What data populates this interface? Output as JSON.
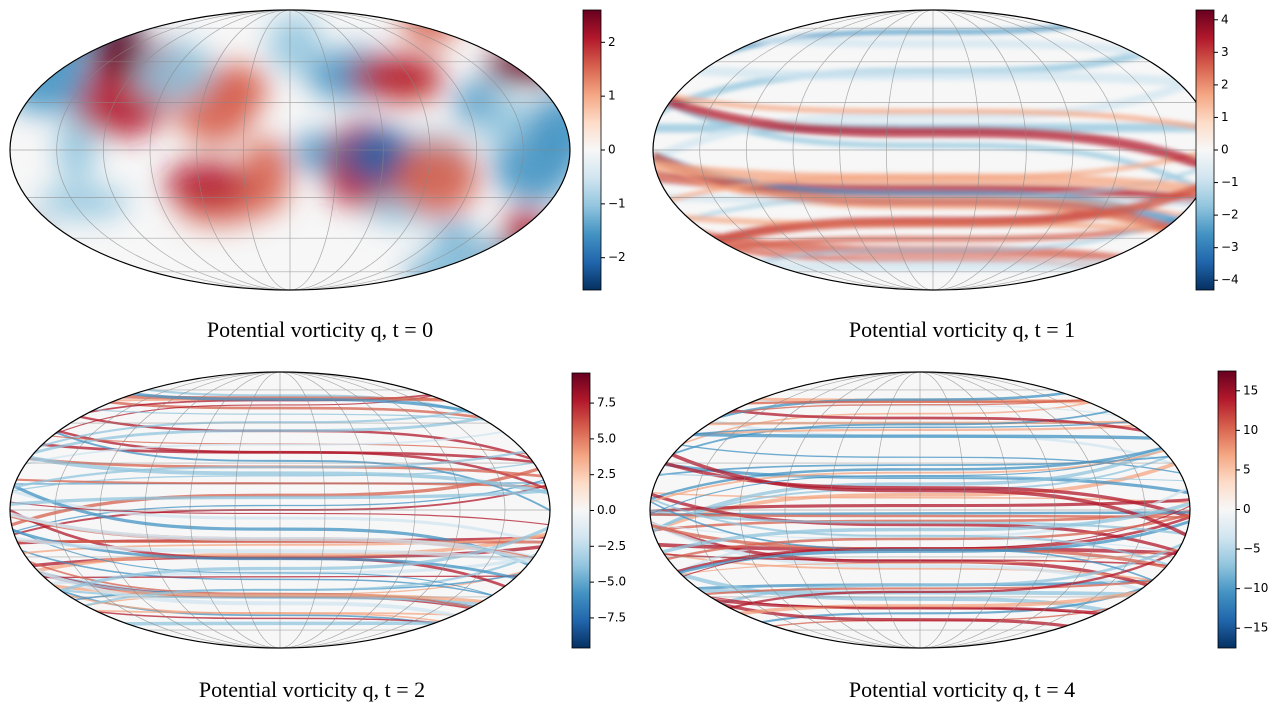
{
  "chart_data": [
    {
      "type": "heatmap",
      "title": "Potential vorticity q, t = 0",
      "colormap": "RdBu_r",
      "ylim": [
        -2.6,
        2.6
      ],
      "yticks": [
        {
          "value": -2,
          "label": "−2"
        },
        {
          "value": -1,
          "label": "−1"
        },
        0,
        1,
        2
      ]
    },
    {
      "type": "heatmap",
      "title": "Potential vorticity q, t = 1",
      "colormap": "RdBu_r",
      "ylim": [
        -4.3,
        4.3
      ],
      "yticks": [
        {
          "value": -4,
          "label": "−4"
        },
        {
          "value": -3,
          "label": "−3"
        },
        {
          "value": -2,
          "label": "−2"
        },
        {
          "value": -1,
          "label": "−1"
        },
        0,
        1,
        2,
        3,
        4
      ]
    },
    {
      "type": "heatmap",
      "title": "Potential vorticity q, t = 2",
      "colormap": "RdBu_r",
      "ylim": [
        -9.6,
        9.6
      ],
      "yticks": [
        {
          "value": -7.5,
          "label": "−7.5"
        },
        {
          "value": -5,
          "label": "−5.0"
        },
        {
          "value": -2.5,
          "label": "−2.5"
        },
        {
          "value": 0,
          "label": "0.0"
        },
        {
          "value": 2.5,
          "label": "2.5"
        },
        {
          "value": 5,
          "label": "5.0"
        },
        7.5
      ]
    },
    {
      "type": "heatmap",
      "title": "Potential vorticity q, t = 4",
      "colormap": "RdBu_r",
      "ylim": [
        -17.5,
        17.5
      ],
      "yticks": [
        {
          "value": -15,
          "label": "−15"
        },
        {
          "value": -10,
          "label": "−10"
        },
        {
          "value": -5,
          "label": "−5"
        },
        0,
        5,
        10,
        15
      ]
    }
  ]
}
